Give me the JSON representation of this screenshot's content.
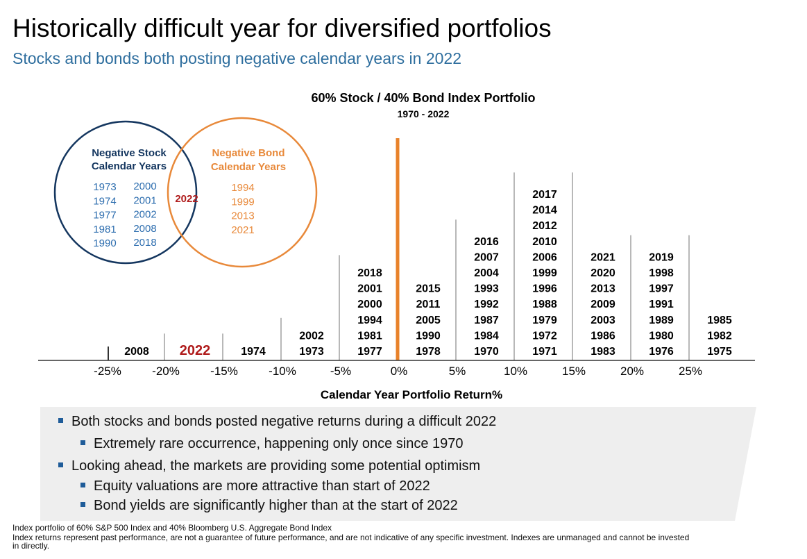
{
  "header": {
    "title": "Historically difficult year for diversified portfolios",
    "subtitle": "Stocks and bonds both posting negative calendar years in 2022"
  },
  "venn": {
    "stock": {
      "title_line1": "Negative Stock",
      "title_line2": "Calendar Years",
      "years_col1": [
        "1973",
        "1974",
        "1977",
        "1981",
        "1990"
      ],
      "years_col2": [
        "2000",
        "2001",
        "2002",
        "2008",
        "2018"
      ],
      "color": "#14365F"
    },
    "bond": {
      "title_line1": "Negative Bond",
      "title_line2": "Calendar Years",
      "years": [
        "1994",
        "1999",
        "2013",
        "2021"
      ],
      "color": "#E8893A"
    },
    "overlap": {
      "year": "2022",
      "color": "#B01C1C"
    }
  },
  "chart_data": {
    "type": "histogram",
    "title": "60% Stock / 40% Bond Index Portfolio",
    "subtitle": "1970 - 2022",
    "xlabel": "Calendar Year Portfolio Return%",
    "x_ticks": [
      -25,
      -20,
      -15,
      -10,
      -5,
      0,
      5,
      10,
      15,
      20,
      25
    ],
    "x_tick_labels": [
      "-25%",
      "-20%",
      "-15%",
      "-10%",
      "-5%",
      "0%",
      "5%",
      "10%",
      "15%",
      "20%",
      "25%"
    ],
    "bins": [
      {
        "range": [
          -25,
          -20
        ],
        "years": [
          "2008"
        ]
      },
      {
        "range": [
          -20,
          -15
        ],
        "years": [
          "2022"
        ],
        "highlight": true
      },
      {
        "range": [
          -15,
          -10
        ],
        "years": [
          "1974"
        ]
      },
      {
        "range": [
          -10,
          -5
        ],
        "years": [
          "2002",
          "1973"
        ]
      },
      {
        "range": [
          -5,
          0
        ],
        "years": [
          "2018",
          "2001",
          "2000",
          "1994",
          "1981",
          "1977"
        ]
      },
      {
        "range": [
          0,
          5
        ],
        "years": [
          "2015",
          "2011",
          "2005",
          "1990",
          "1978"
        ]
      },
      {
        "range": [
          5,
          10
        ],
        "years": [
          "2016",
          "2007",
          "2004",
          "1993",
          "1992",
          "1987",
          "1984",
          "1970"
        ]
      },
      {
        "range": [
          10,
          15
        ],
        "years": [
          "2017",
          "2014",
          "2012",
          "2010",
          "2006",
          "1999",
          "1996",
          "1988",
          "1979",
          "1972",
          "1971"
        ]
      },
      {
        "range": [
          15,
          20
        ],
        "years": [
          "2021",
          "2020",
          "2013",
          "2009",
          "2003",
          "1986",
          "1983"
        ]
      },
      {
        "range": [
          20,
          25
        ],
        "years": [
          "2019",
          "1998",
          "1997",
          "1991",
          "1989",
          "1980",
          "1976"
        ]
      },
      {
        "range": [
          25,
          30
        ],
        "years": [
          "1985",
          "1982",
          "1975"
        ]
      }
    ],
    "zero_line_color": "#E8822A",
    "highlight_color": "#B01C1C"
  },
  "bullets": [
    {
      "level": 1,
      "text": "Both stocks and bonds posted negative returns during a difficult 2022"
    },
    {
      "level": 2,
      "text": "Extremely rare occurrence, happening only once since 1970"
    },
    {
      "level": 1,
      "text": "Looking ahead, the markets are providing some potential optimism"
    },
    {
      "level": 2,
      "text": "Equity valuations are more attractive than start of 2022"
    },
    {
      "level": 2,
      "text": "Bond yields are significantly higher than at the start of 2022"
    }
  ],
  "footnotes": {
    "line1": "Index portfolio of 60% S&P 500 Index and 40% Bloomberg U.S. Aggregate Bond Index",
    "line2": "Index returns represent past performance, are not a guarantee of future performance, and are not indicative of any specific investment. Indexes are unmanaged and cannot be invested",
    "line3": "in directly."
  }
}
